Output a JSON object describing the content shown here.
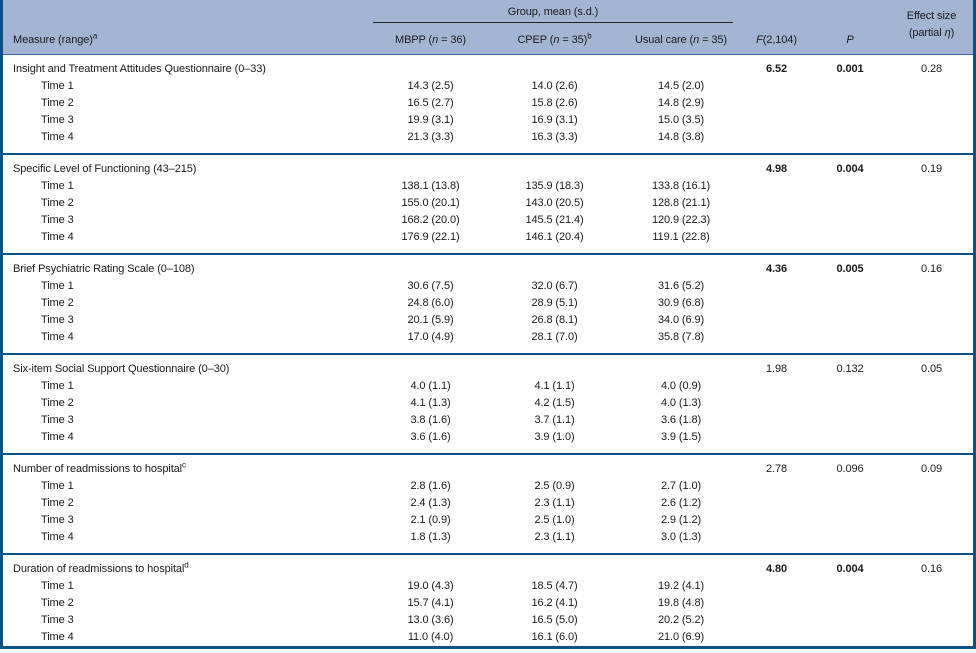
{
  "colors": {
    "frame_blue": "#0b5183",
    "header_background": "#a3b5d3",
    "underline": "#222222",
    "text": "#1a1a1a"
  },
  "header": {
    "measure_label": "Measure (range)",
    "measure_sup": "a",
    "group_label": "Group, mean (s.d.)",
    "group_columns": [
      {
        "pre": "MBPP (",
        "n": "n",
        "post": " = 36)",
        "sup": ""
      },
      {
        "pre": "CPEP (",
        "n": "n",
        "post": " = 35)",
        "sup": "b"
      },
      {
        "pre": "Usual care (",
        "n": "n",
        "post": " = 35)",
        "sup": ""
      }
    ],
    "f_italic": "F",
    "f_rest": "(2,104)",
    "p_label": "P",
    "effect_line1": "Effect size",
    "effect_line2_pre": "(partial ",
    "effect_eta": "η",
    "effect_line2_post": ")"
  },
  "sections": [
    {
      "measure": "Insight and Treatment Attitudes Questionnaire (0–33)",
      "measure_sup": "",
      "f": "6.52",
      "p": "0.001",
      "effect": "0.28",
      "significant": true,
      "rows": [
        {
          "label": "Time 1",
          "mbpp": "14.3 (2.5)",
          "cpep": "14.0 (2.6)",
          "usual": "14.5 (2.0)"
        },
        {
          "label": "Time 2",
          "mbpp": "16.5 (2.7)",
          "cpep": "15.8 (2.6)",
          "usual": "14.8 (2.9)"
        },
        {
          "label": "Time 3",
          "mbpp": "19.9 (3.1)",
          "cpep": "16.9 (3.1)",
          "usual": "15.0 (3.5)"
        },
        {
          "label": "Time 4",
          "mbpp": "21.3 (3.3)",
          "cpep": "16.3 (3.3)",
          "usual": "14.8 (3.8)"
        }
      ]
    },
    {
      "measure": "Specific Level of Functioning (43–215)",
      "measure_sup": "",
      "f": "4.98",
      "p": "0.004",
      "effect": "0.19",
      "significant": true,
      "rows": [
        {
          "label": "Time 1",
          "mbpp": "138.1 (13.8)",
          "cpep": "135.9 (18.3)",
          "usual": "133.8 (16.1)"
        },
        {
          "label": "Time 2",
          "mbpp": "155.0 (20.1)",
          "cpep": "143.0 (20.5)",
          "usual": "128.8 (21.1)"
        },
        {
          "label": "Time 3",
          "mbpp": "168.2 (20.0)",
          "cpep": "145.5 (21.4)",
          "usual": "120.9 (22.3)"
        },
        {
          "label": "Time 4",
          "mbpp": "176.9 (22.1)",
          "cpep": "146.1 (20.4)",
          "usual": "119.1 (22.8)"
        }
      ]
    },
    {
      "measure": "Brief Psychiatric Rating Scale (0–108)",
      "measure_sup": "",
      "f": "4.36",
      "p": "0.005",
      "effect": "0.16",
      "significant": true,
      "rows": [
        {
          "label": "Time 1",
          "mbpp": "30.6 (7.5)",
          "cpep": "32.0 (6.7)",
          "usual": "31.6 (5.2)"
        },
        {
          "label": "Time 2",
          "mbpp": "24.8 (6.0)",
          "cpep": "28.9 (5.1)",
          "usual": "30.9 (6.8)"
        },
        {
          "label": "Time 3",
          "mbpp": "20.1 (5.9)",
          "cpep": "26.8 (8.1)",
          "usual": "34.0 (6.9)"
        },
        {
          "label": "Time 4",
          "mbpp": "17.0 (4.9)",
          "cpep": "28.1 (7.0)",
          "usual": "35.8 (7.8)"
        }
      ]
    },
    {
      "measure": "Six-item Social Support Questionnaire (0–30)",
      "measure_sup": "",
      "f": "1.98",
      "p": "0.132",
      "effect": "0.05",
      "significant": false,
      "rows": [
        {
          "label": "Time 1",
          "mbpp": "4.0 (1.1)",
          "cpep": "4.1 (1.1)",
          "usual": "4.0 (0.9)"
        },
        {
          "label": "Time 2",
          "mbpp": "4.1 (1.3)",
          "cpep": "4.2 (1.5)",
          "usual": "4.0 (1.3)"
        },
        {
          "label": "Time 3",
          "mbpp": "3.8 (1.6)",
          "cpep": "3.7 (1.1)",
          "usual": "3.6 (1.8)"
        },
        {
          "label": "Time 4",
          "mbpp": "3.6 (1.6)",
          "cpep": "3.9 (1.0)",
          "usual": "3.9 (1.5)"
        }
      ]
    },
    {
      "measure": "Number of readmissions to hospital",
      "measure_sup": "c",
      "f": "2.78",
      "p": "0.096",
      "effect": "0.09",
      "significant": false,
      "rows": [
        {
          "label": "Time 1",
          "mbpp": "2.8 (1.6)",
          "cpep": "2.5 (0.9)",
          "usual": "2.7 (1.0)"
        },
        {
          "label": "Time 2",
          "mbpp": "2.4 (1.3)",
          "cpep": "2.3 (1.1)",
          "usual": "2.6 (1.2)"
        },
        {
          "label": "Time 3",
          "mbpp": "2.1 (0.9)",
          "cpep": "2.5 (1.0)",
          "usual": "2.9 (1.2)"
        },
        {
          "label": "Time 4",
          "mbpp": "1.8 (1.3)",
          "cpep": "2.3 (1.1)",
          "usual": "3.0 (1.3)"
        }
      ]
    },
    {
      "measure": "Duration of readmissions to hospital",
      "measure_sup": "d",
      "f": "4.80",
      "p": "0.004",
      "effect": "0.16",
      "significant": true,
      "rows": [
        {
          "label": "Time 1",
          "mbpp": "19.0 (4.3)",
          "cpep": "18.5 (4.7)",
          "usual": "19.2 (4.1)"
        },
        {
          "label": "Time 2",
          "mbpp": "15.7 (4.1)",
          "cpep": "16.2 (4.1)",
          "usual": "19.8 (4.8)"
        },
        {
          "label": "Time 3",
          "mbpp": "13.0 (3.6)",
          "cpep": "16.5 (5.0)",
          "usual": "20.2 (5.2)"
        },
        {
          "label": "Time 4",
          "mbpp": "11.0 (4.0)",
          "cpep": "16.1 (6.0)",
          "usual": "21.0 (6.9)"
        }
      ]
    }
  ]
}
